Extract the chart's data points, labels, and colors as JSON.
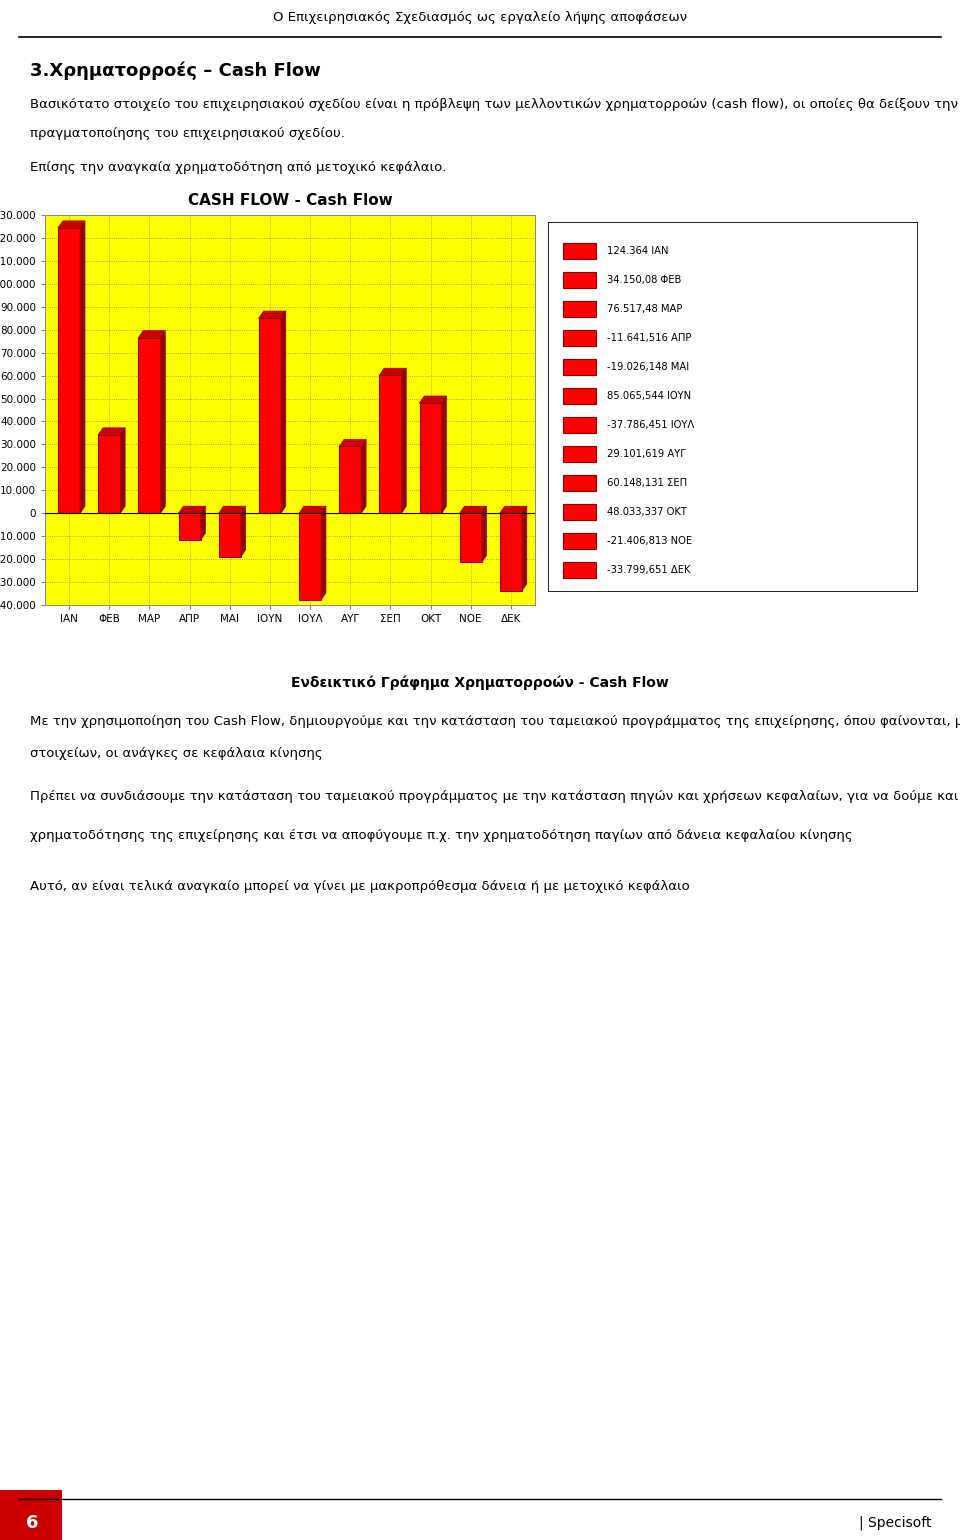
{
  "title": "CASH FLOW - Cash Flow",
  "chart_bg": "#FFFF00",
  "page_bg": "#FFFFFF",
  "bar_color_face": "#FF0000",
  "bar_color_edge": "#8B0000",
  "categories": [
    "ΙΑΝ",
    "ΦΕΒ",
    "ΜΑΡ",
    "ΑΠΡ",
    "ΜΑΙ",
    "ΙΟΥΝ",
    "ΙΟΥΛ",
    "ΑΥΓ",
    "ΣΕΠ",
    "ΟΚΤ",
    "ΝΟΕ",
    "ΔΕΚ"
  ],
  "values": [
    124364.0,
    34150.08,
    76517.48,
    -11641.516,
    -19026.148,
    85065.544,
    -37786.451,
    29101.619,
    60148.131,
    48033.337,
    -21406.813,
    -33799.651
  ],
  "legend_labels": [
    "124.364 ΙΑΝ",
    "34.150,08 ΦΕΒ",
    "76.517,48 ΜΑΡ",
    "-11.641,516 ΑΠΡ",
    "-19.026,148 ΜΑΙ",
    "85.065,544 ΙΟΥΝ",
    "-37.786,451 ΙΟΥΛ",
    "29.101,619 ΑΥΓ",
    "60.148,131 ΣΕΠ",
    "48.033,337 ΟΚΤ",
    "-21.406,813 ΝΟΕ",
    "-33.799,651 ΔΕΚ"
  ],
  "ylim_min": -40000,
  "ylim_max": 130000,
  "ytick_step": 10000,
  "subtitle_text": "Ενδεικτικό Γράφημα Χρηματορροών - Cash Flow",
  "page_title": "Ο Επιχειρησιακός Σχεδιασμός ως εργαλείο λήψης αποφάσεων",
  "section_title": "3.Χρηματορροές – Cash Flow",
  "body_text1_line1": "Βασικότατο στοιχείο του επιχειρησιακού σχεδίου είναι η πρόβλεψη των μελλοντικών χρηματορροών (cash flow), οι οποίες θα δείξουν την οικονομική δυνατότητα",
  "body_text1_line2": "πραγματοποίησης του επιχειρησιακού σχεδίου.",
  "body_text2": "Επίσης την αναγκαία χρηματοδότηση από μετοχικό κεφάλαιο.",
  "body_text3_line1": "Με την χρησιμοποίηση του Cash Flow, δημιουργούμε και την κατάσταση του ταμειακού προγράμματος της επιχείρησης, όπου φαίνονται, μεταξύ και άλλων",
  "body_text3_line2": "στοιχείων, οι ανάγκες σε κεφάλαια κίνησης",
  "body_text4_line1": "Πρέπει να συνδιάσουμε την κατάσταση του ταμειακού προγράμματος με την κατάσταση πηγών και χρήσεων κεφαλαίων, για να δούμε και τον τρόπο",
  "body_text4_line2": "χρηματοδότησης της επιχείρησης και έτσι να αποφύγουμε π.χ. την χρηματοδότηση παγίων από δάνεια κεφαλαίου κίνησης",
  "body_text5": "Αυτό, αν είναι τελικά αναγκαίο μπορεί να γίνει με μακροπρόθεσμα δάνεια ή με μετοχικό κεφάλαιο",
  "footer_page": "6",
  "footer_brand": "| Specisoft"
}
